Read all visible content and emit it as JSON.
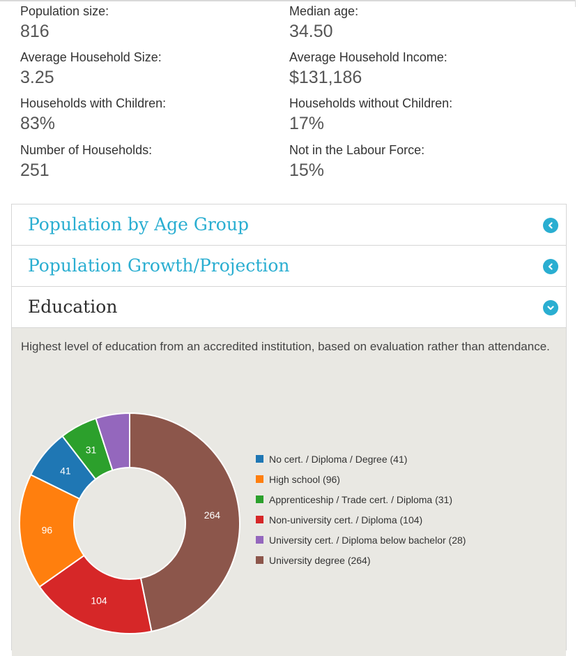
{
  "stats": {
    "population_size": {
      "label": "Population size:",
      "value": "816"
    },
    "median_age": {
      "label": "Median age:",
      "value": "34.50"
    },
    "avg_household_size": {
      "label": "Average Household Size:",
      "value": "3.25"
    },
    "avg_household_income": {
      "label": "Average Household Income:",
      "value": "$131,186"
    },
    "households_with_children": {
      "label": "Households with Children:",
      "value": "83%"
    },
    "households_without_children": {
      "label": "Households without Children:",
      "value": "17%"
    },
    "number_of_households": {
      "label": "Number of Households:",
      "value": "251"
    },
    "not_in_labour_force": {
      "label": "Not in the Labour Force:",
      "value": "15%"
    }
  },
  "accordion": {
    "sections": [
      {
        "title": "Population by Age Group",
        "state": "collapsed",
        "icon": "chevron-left-icon"
      },
      {
        "title": "Population Growth/Projection",
        "state": "collapsed",
        "icon": "chevron-left-icon"
      },
      {
        "title": "Education",
        "state": "expanded",
        "icon": "chevron-down-icon"
      }
    ],
    "education": {
      "description": "Highest level of education from an accredited institution, based on evaluation rather than attendance."
    }
  },
  "colors": {
    "accent": "#2aaed1",
    "panel_bg": "#e9e8e3"
  },
  "chart_data": {
    "type": "pie",
    "style": "donut",
    "title": "",
    "categories": [
      "No cert. / Diploma / Degree",
      "High school",
      "Apprenticeship / Trade cert. / Diploma",
      "Non-university cert. / Diploma",
      "University cert. / Diploma below bachelor",
      "University degree"
    ],
    "values": [
      41,
      96,
      31,
      104,
      28,
      264
    ],
    "colors": [
      "#1f77b4",
      "#ff7f0e",
      "#2ca02c",
      "#d62728",
      "#9467bd",
      "#8c564b"
    ],
    "legend": [
      "No cert. / Diploma / Degree (41)",
      "High school (96)",
      "Apprenticeship / Trade cert. / Diploma (31)",
      "Non-university cert. / Diploma (104)",
      "University cert. / Diploma below bachelor (28)",
      "University degree (264)"
    ],
    "data_labels": [
      "41",
      "96",
      "31",
      "104",
      "",
      "264"
    ],
    "legend_position": "right"
  }
}
